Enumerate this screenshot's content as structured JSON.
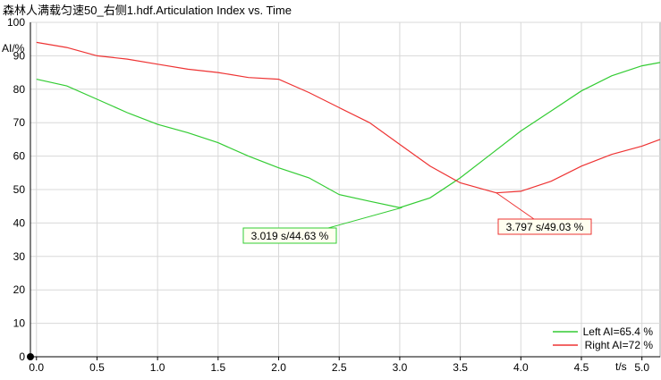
{
  "chart_data": {
    "type": "line",
    "title": "森林人满载匀速50_右侧1.hdf.Articulation Index vs. Time",
    "xlabel": "t/s",
    "ylabel": "AI/%",
    "xlim": [
      -0.05,
      5.15
    ],
    "ylim": [
      0,
      100
    ],
    "x_ticks": [
      "0.0",
      "0.5",
      "1.0",
      "1.5",
      "2.0",
      "2.5",
      "3.0",
      "3.5",
      "4.0",
      "4.5",
      "5.0"
    ],
    "y_ticks": [
      "0",
      "10",
      "20",
      "30",
      "40",
      "50",
      "60",
      "70",
      "80",
      "90",
      "100"
    ],
    "grid": true,
    "legend_position": "bottom-right",
    "series": [
      {
        "name": "Left AI=65.4 %",
        "color": "#33cc33",
        "x": [
          0.0,
          0.25,
          0.5,
          0.75,
          1.0,
          1.25,
          1.5,
          1.75,
          2.0,
          2.25,
          2.5,
          2.75,
          3.0,
          3.25,
          3.5,
          3.75,
          4.0,
          4.25,
          4.5,
          4.75,
          5.0,
          5.15
        ],
        "y": [
          83.0,
          81.0,
          77.0,
          73.0,
          69.5,
          67.0,
          64.0,
          60.0,
          56.5,
          53.5,
          48.5,
          46.5,
          44.6,
          47.5,
          53.5,
          60.5,
          67.5,
          73.5,
          79.5,
          84.0,
          87.0,
          88.0
        ]
      },
      {
        "name": "Right AI=72 %",
        "color": "#ee3333",
        "x": [
          0.0,
          0.25,
          0.5,
          0.75,
          1.0,
          1.25,
          1.5,
          1.75,
          2.0,
          2.25,
          2.5,
          2.75,
          3.0,
          3.25,
          3.5,
          3.75,
          3.797,
          4.0,
          4.25,
          4.5,
          4.75,
          5.0,
          5.15
        ],
        "y": [
          94.0,
          92.5,
          90.0,
          89.0,
          87.5,
          86.0,
          85.0,
          83.5,
          83.0,
          79.0,
          74.5,
          70.0,
          63.5,
          57.0,
          52.0,
          49.5,
          49.0,
          49.5,
          52.5,
          57.0,
          60.5,
          63.0,
          65.0
        ]
      }
    ],
    "annotations": [
      {
        "text": "3.019 s/44.63 %",
        "x": 3.019,
        "y": 44.63,
        "series": 0,
        "box_color": "#33cc33"
      },
      {
        "text": "3.797 s/49.03 %",
        "x": 3.797,
        "y": 49.03,
        "series": 1,
        "box_color": "#ee3333"
      }
    ]
  }
}
